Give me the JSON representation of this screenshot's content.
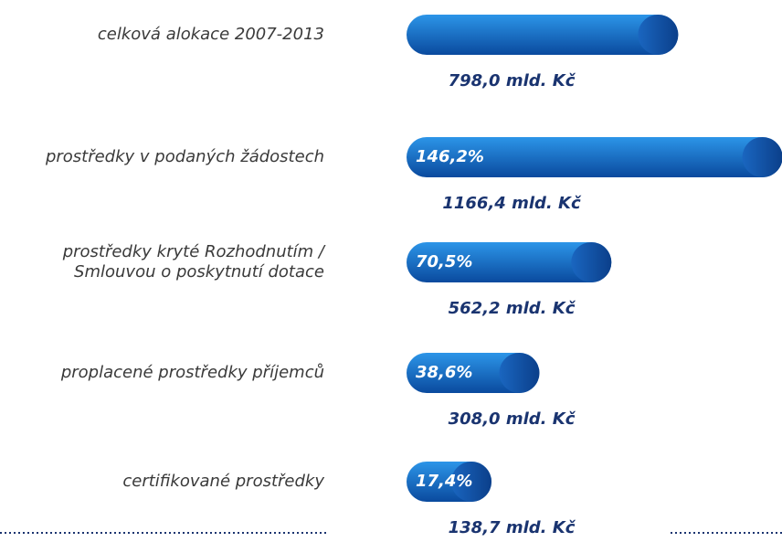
{
  "chart_data": {
    "type": "bar",
    "orientation": "horizontal",
    "categories": [
      "celková alokace 2007-2013",
      "prostředky v podaných žádostech",
      [
        "prostředky kryté Rozhodnutím /",
        "Smlouvou o poskytnutí dotace"
      ],
      "proplacené prostředky příjemců",
      "certifikované prostředky"
    ],
    "values": [
      798.0,
      1166.4,
      562.2,
      308.0,
      138.7
    ],
    "value_labels": [
      "798,0 mld. Kč",
      "1166,4 mld. Kč",
      "562,2 mld. Kč",
      "308,0 mld. Kč",
      "138,7 mld. Kč"
    ],
    "percent_values": [
      null,
      146.2,
      70.5,
      38.6,
      17.4
    ],
    "percent_labels": [
      null,
      "146,2%",
      "70,5%",
      "38,6%",
      "17,4%"
    ],
    "color": "#1570d0"
  }
}
